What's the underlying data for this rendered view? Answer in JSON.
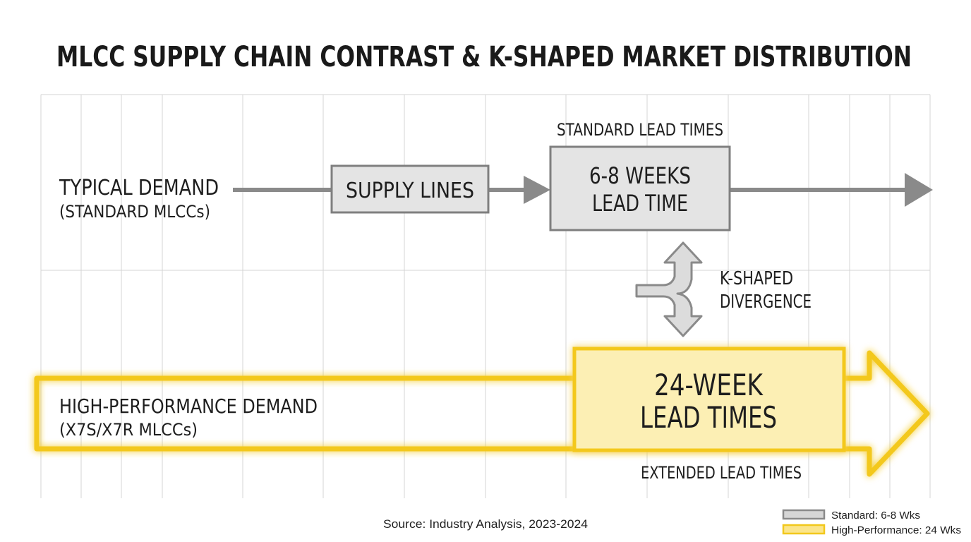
{
  "title": "MLCC SUPPLY CHAIN CONTRAST & K-SHAPED MARKET DISTRIBUTION",
  "typical": {
    "label_line1": "TYPICAL DEMAND",
    "label_line2": "(STANDARD MLCCs)",
    "supply_lines": "SUPPLY LINES",
    "standard_lead_times": "STANDARD LEAD TIMES",
    "box_line1": "6-8 WEEKS",
    "box_line2": "LEAD TIME"
  },
  "divergence": {
    "line1": "K-SHAPED",
    "line2": "DIVERGENCE"
  },
  "high_performance": {
    "label_line1": "HIGH-PERFORMANCE DEMAND",
    "label_line2": "(X7S/X7R MLCCs)",
    "box_line1": "24-WEEK",
    "box_line2": "LEAD TIMES",
    "extended": "EXTENDED LEAD TIMES"
  },
  "source": "Source: Industry Analysis, 2023-2024",
  "legend": [
    {
      "label": "Standard: 6-8 Wks",
      "color": "#c8c8c8",
      "stroke": "#8a8a8a"
    },
    {
      "label": "High-Performance: 24 Wks",
      "color": "#fbe58a",
      "stroke": "#f2c81c"
    }
  ],
  "colors": {
    "gray_stroke": "#7f7f7f",
    "gray_fill": "#e3e3e3",
    "yellow_stroke": "#f3c81a",
    "yellow_fill": "#fcefb4",
    "grid": "#d4d4d4"
  }
}
